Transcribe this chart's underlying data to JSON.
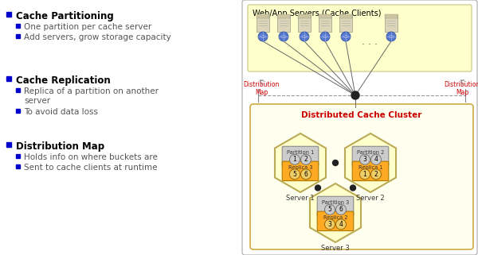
{
  "bg_color": "#ffffff",
  "left_panel": {
    "sections": [
      {
        "title": "Cache Partitioning",
        "bullets": [
          "One partition per cache server",
          "Add servers, grow storage capacity"
        ]
      },
      {
        "title": "Cache Replication",
        "bullets": [
          "Replica of a partition on another\nserver",
          "To avoid data loss"
        ]
      },
      {
        "title": "Distribution Map",
        "bullets": [
          "Holds info on where buckets are",
          "Sent to cache clients at runtime"
        ]
      }
    ],
    "bullet_color": "#0000cc",
    "title_color": "#000000",
    "text_color": "#555555",
    "title_fontsize": 8.5,
    "body_fontsize": 7.5
  },
  "right_panel": {
    "web_box_color": "#ffffcc",
    "web_box_border": "#cccc88",
    "web_box_label": "Web/App Servers (Cache Clients)",
    "cluster_box_color": "#fffff0",
    "cluster_box_border": "#ccaa44",
    "cluster_label": "Distributed Cache Cluster",
    "dist_map_color": "#cc0000",
    "server_labels": [
      "Server 1",
      "Server 2",
      "Server 3"
    ],
    "partition_color": "#cccccc",
    "replica_color": "#ffaa22",
    "hex_fill": "#ffffcc",
    "hex_border": "#bbaa55",
    "outer_box_color": "#ffffff",
    "outer_box_border": "#aaaaaa"
  }
}
